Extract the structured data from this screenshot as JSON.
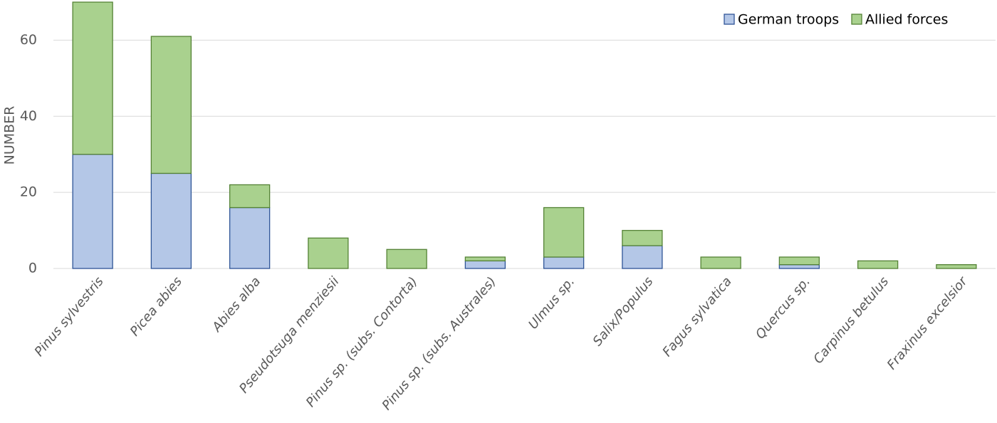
{
  "chart_data": {
    "type": "stacked_bar",
    "y_label": "NUMBER",
    "categories": [
      "Pinus sylvestris",
      "Picea abies",
      "Abies alba",
      "Pseudotsuga menziesii",
      "Pinus sp. (subs. Contorta)",
      "Pinus sp. (subs. Australes)",
      "Ulmus sp.",
      "Salix/Populus",
      "Fagus sylvatica",
      "Quercus sp.",
      "Carpinus betulus",
      "Fraxinus excelsior"
    ],
    "series": [
      {
        "name": "German troops",
        "color": "#b4c7e7",
        "edge_color": "#2f5597",
        "values": [
          30,
          25,
          16,
          0,
          0,
          2,
          3,
          6,
          0,
          1,
          0,
          0
        ]
      },
      {
        "name": "Allied forces",
        "color": "#a9d18e",
        "edge_color": "#548235",
        "values": [
          40,
          36,
          6,
          8,
          5,
          1,
          13,
          4,
          3,
          2,
          2,
          1
        ]
      }
    ],
    "ylim": [
      0,
      70
    ],
    "yticks": [
      0,
      20,
      40,
      60
    ],
    "grid": true,
    "legend": "top-right"
  }
}
